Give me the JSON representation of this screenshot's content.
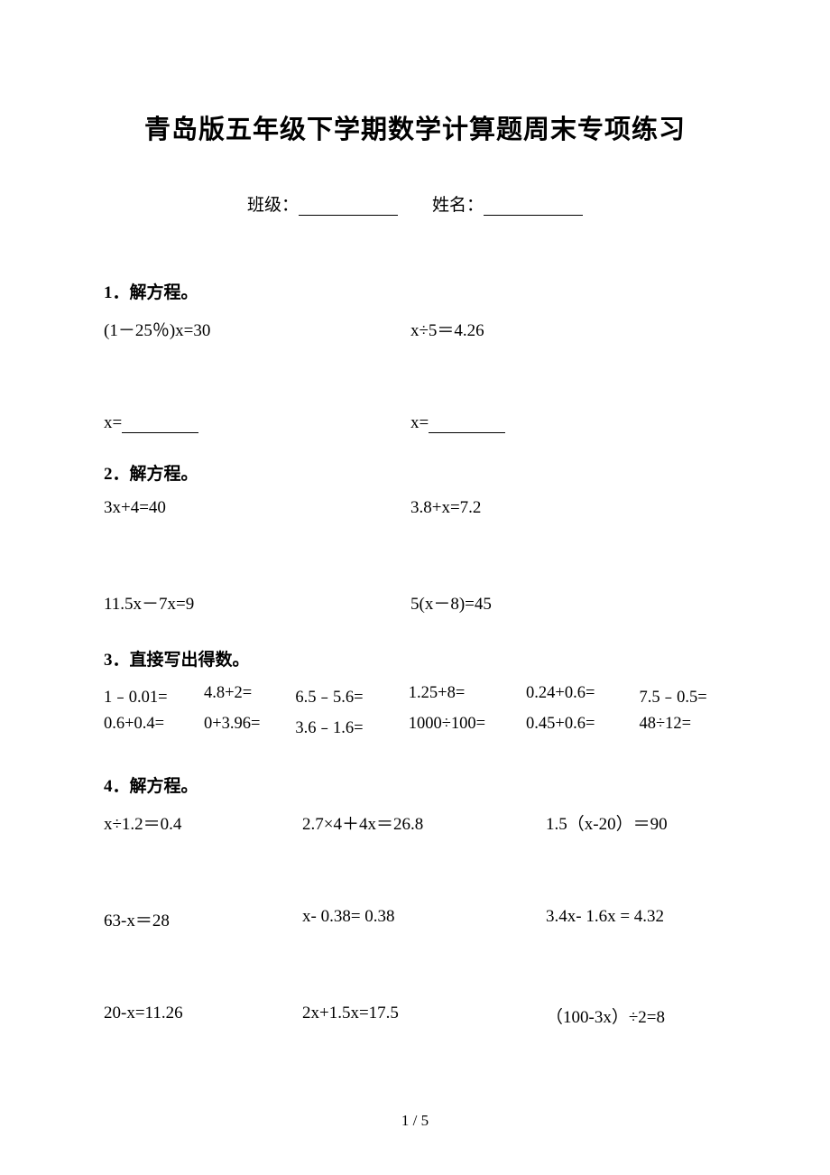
{
  "title": "青岛版五年级下学期数学计算题周末专项练习",
  "header": {
    "class_label": "班级：",
    "name_label": "姓名："
  },
  "sections": {
    "q1": {
      "title": "1．解方程。",
      "eq1": "(1－25％)x=30",
      "eq2": "x÷5＝4.26",
      "ans1": "x=",
      "ans2": "x="
    },
    "q2": {
      "title": "2．解方程。",
      "eq1": "3x+4=40",
      "eq2": "3.8+x=7.2",
      "eq3": "11.5x－7x=9",
      "eq4": "5(x－8)=45"
    },
    "q3": {
      "title": "3．直接写出得数。",
      "row1": [
        "1﹣0.01=",
        "4.8+2=",
        "6.5﹣5.6=",
        "1.25+8=",
        "0.24+0.6=",
        "7.5﹣0.5="
      ],
      "row2": [
        "0.6+0.4=",
        "0+3.96=",
        "3.6﹣1.6=",
        "1000÷100=",
        "0.45+0.6=",
        "48÷12="
      ]
    },
    "q4": {
      "title": "4．解方程。",
      "row1": [
        "x÷1.2＝0.4",
        "2.7×4＋4x＝26.8",
        "1.5（x-20）＝90"
      ],
      "row2": [
        "63-x＝28",
        "x- 0.38= 0.38",
        "3.4x- 1.6x = 4.32"
      ],
      "row3": [
        "20-x=11.26",
        "2x+1.5x=17.5",
        "（100-3x）÷2=8"
      ]
    }
  },
  "footer": "1 / 5"
}
